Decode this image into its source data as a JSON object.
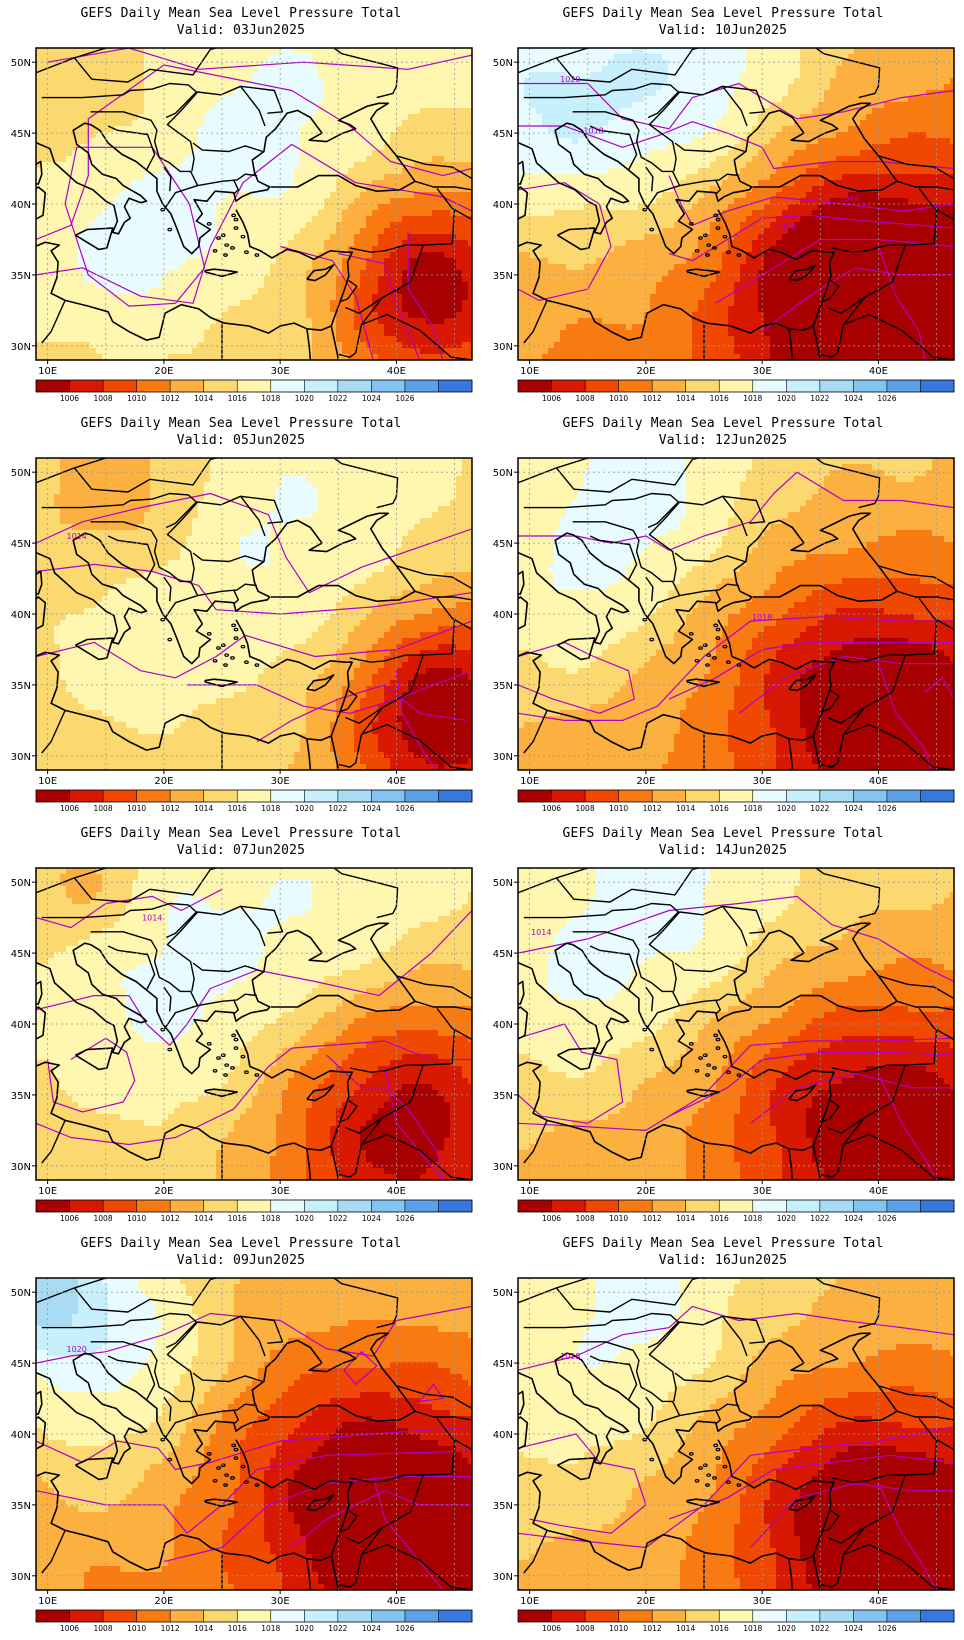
{
  "panels": [
    {
      "title": "GEFS Daily Mean Sea Level Pressure Total",
      "valid": "Valid: 03Jun2025",
      "scenario": 0,
      "contour_labels": []
    },
    {
      "title": "GEFS Daily Mean Sea Level Pressure Total",
      "valid": "Valid: 10Jun2025",
      "scenario": 4,
      "contour_labels": [
        "1020",
        "1018",
        "1014",
        "1008"
      ]
    },
    {
      "title": "GEFS Daily Mean Sea Level Pressure Total",
      "valid": "Valid: 05Jun2025",
      "scenario": 1,
      "contour_labels": [
        "1014"
      ]
    },
    {
      "title": "GEFS Daily Mean Sea Level Pressure Total",
      "valid": "Valid: 12Jun2025",
      "scenario": 5,
      "contour_labels": [
        "1018"
      ]
    },
    {
      "title": "GEFS Daily Mean Sea Level Pressure Total",
      "valid": "Valid: 07Jun2025",
      "scenario": 2,
      "contour_labels": [
        "1014",
        "1016",
        "1014",
        "1012"
      ]
    },
    {
      "title": "GEFS Daily Mean Sea Level Pressure Total",
      "valid": "Valid: 14Jun2025",
      "scenario": 6,
      "contour_labels": [
        "1014"
      ]
    },
    {
      "title": "GEFS Daily Mean Sea Level Pressure Total",
      "valid": "Valid: 09Jun2025",
      "scenario": 3,
      "contour_labels": [
        "1020",
        "1018",
        "1012",
        "1010"
      ]
    },
    {
      "title": "GEFS Daily Mean Sea Level Pressure Total",
      "valid": "Valid: 16Jun2025",
      "scenario": 7,
      "contour_labels": [
        "1018"
      ]
    }
  ],
  "axes": {
    "lat_labels": [
      "50N",
      "45N",
      "40N",
      "35N",
      "30N"
    ],
    "lon_labels": [
      "10E",
      "20E",
      "30E",
      "40E"
    ]
  },
  "colorbar": {
    "labels": [
      "1006",
      "1008",
      "1010",
      "1012",
      "1014",
      "1016",
      "1018",
      "1020",
      "1022",
      "1024",
      "1026"
    ],
    "colors": [
      "#a80000",
      "#d81800",
      "#f04800",
      "#f87a10",
      "#fbb040",
      "#fcd870",
      "#fff6b0",
      "#e8fcff",
      "#c8f0fc",
      "#a8dcf4",
      "#84c4f0",
      "#5ca0e8",
      "#3878dc"
    ]
  },
  "contour_color": "#b000c8",
  "coastline_color": "#000000",
  "grid_color": "#9a9a9a"
}
